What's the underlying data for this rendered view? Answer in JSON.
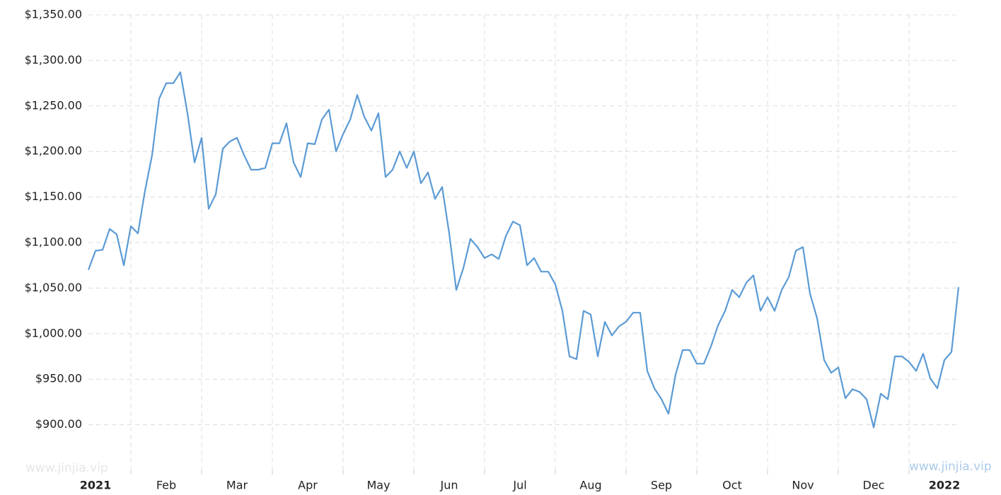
{
  "chart_data": {
    "type": "line",
    "categories": [
      null,
      "2021",
      null,
      null,
      null,
      null,
      null,
      null,
      null,
      null,
      null,
      "Feb",
      null,
      null,
      null,
      null,
      null,
      null,
      null,
      null,
      null,
      "Mar",
      null,
      null,
      null,
      null,
      null,
      null,
      null,
      null,
      null,
      "Apr",
      null,
      null,
      null,
      null,
      null,
      null,
      null,
      null,
      null,
      "May",
      null,
      null,
      null,
      null,
      null,
      null,
      null,
      null,
      null,
      "Jun",
      null,
      null,
      null,
      null,
      null,
      null,
      null,
      null,
      null,
      "Jul",
      null,
      null,
      null,
      null,
      null,
      null,
      null,
      null,
      null,
      "Aug",
      null,
      null,
      null,
      null,
      null,
      null,
      null,
      null,
      null,
      "Sep",
      null,
      null,
      null,
      null,
      null,
      null,
      null,
      null,
      null,
      "Oct",
      null,
      null,
      null,
      null,
      null,
      null,
      null,
      null,
      null,
      "Nov",
      null,
      null,
      null,
      null,
      null,
      null,
      null,
      null,
      null,
      "Dec",
      null,
      null,
      null,
      null,
      null,
      null,
      null,
      null,
      null,
      "2022",
      null,
      null
    ],
    "values": [
      1070,
      1091,
      1092,
      1115,
      1109,
      1075,
      1118,
      1110,
      1157,
      1196,
      1258,
      1275,
      1275,
      1287,
      1242,
      1188,
      1215,
      1137,
      1153,
      1203,
      1211,
      1215,
      1196,
      1180,
      1180,
      1182,
      1209,
      1209,
      1231,
      1188,
      1172,
      1209,
      1208,
      1235,
      1246,
      1200,
      1219,
      1235,
      1262,
      1238,
      1223,
      1242,
      1172,
      1180,
      1200,
      1182,
      1200,
      1165,
      1177,
      1148,
      1161,
      1110,
      1048,
      1072,
      1104,
      1095,
      1083,
      1087,
      1082,
      1107,
      1123,
      1119,
      1075,
      1083,
      1068,
      1068,
      1054,
      1025,
      975,
      972,
      1025,
      1021,
      975,
      1013,
      998,
      1008,
      1013,
      1023,
      1023,
      959,
      940,
      928,
      912,
      955,
      982,
      982,
      967,
      967,
      986,
      1009,
      1025,
      1048,
      1040,
      1056,
      1064,
      1025,
      1040,
      1025,
      1048,
      1062,
      1091,
      1095,
      1044,
      1017,
      971,
      957,
      963,
      929,
      939,
      936,
      928,
      897,
      934,
      928,
      975,
      975,
      969,
      959,
      978,
      951,
      940,
      971,
      980,
      1051
    ],
    "color": "#5b9bd5",
    "ylim": [
      850,
      1350
    ],
    "yticks": [
      {
        "value": 900,
        "label": "$900.00"
      },
      {
        "value": 950,
        "label": "$950.00"
      },
      {
        "value": 1000,
        "label": "$1,000.00"
      },
      {
        "value": 1050,
        "label": "$1,050.00"
      },
      {
        "value": 1100,
        "label": "$1,100.00"
      },
      {
        "value": 1150,
        "label": "$1,150.00"
      },
      {
        "value": 1200,
        "label": "$1,200.00"
      },
      {
        "value": 1250,
        "label": "$1,250.00"
      },
      {
        "value": 1300,
        "label": "$1,300.00"
      },
      {
        "value": 1350,
        "label": "$1,350.00"
      }
    ],
    "grid": true
  },
  "watermarks": [
    "www.jinjia.vip",
    "www.jinjia.vip"
  ]
}
